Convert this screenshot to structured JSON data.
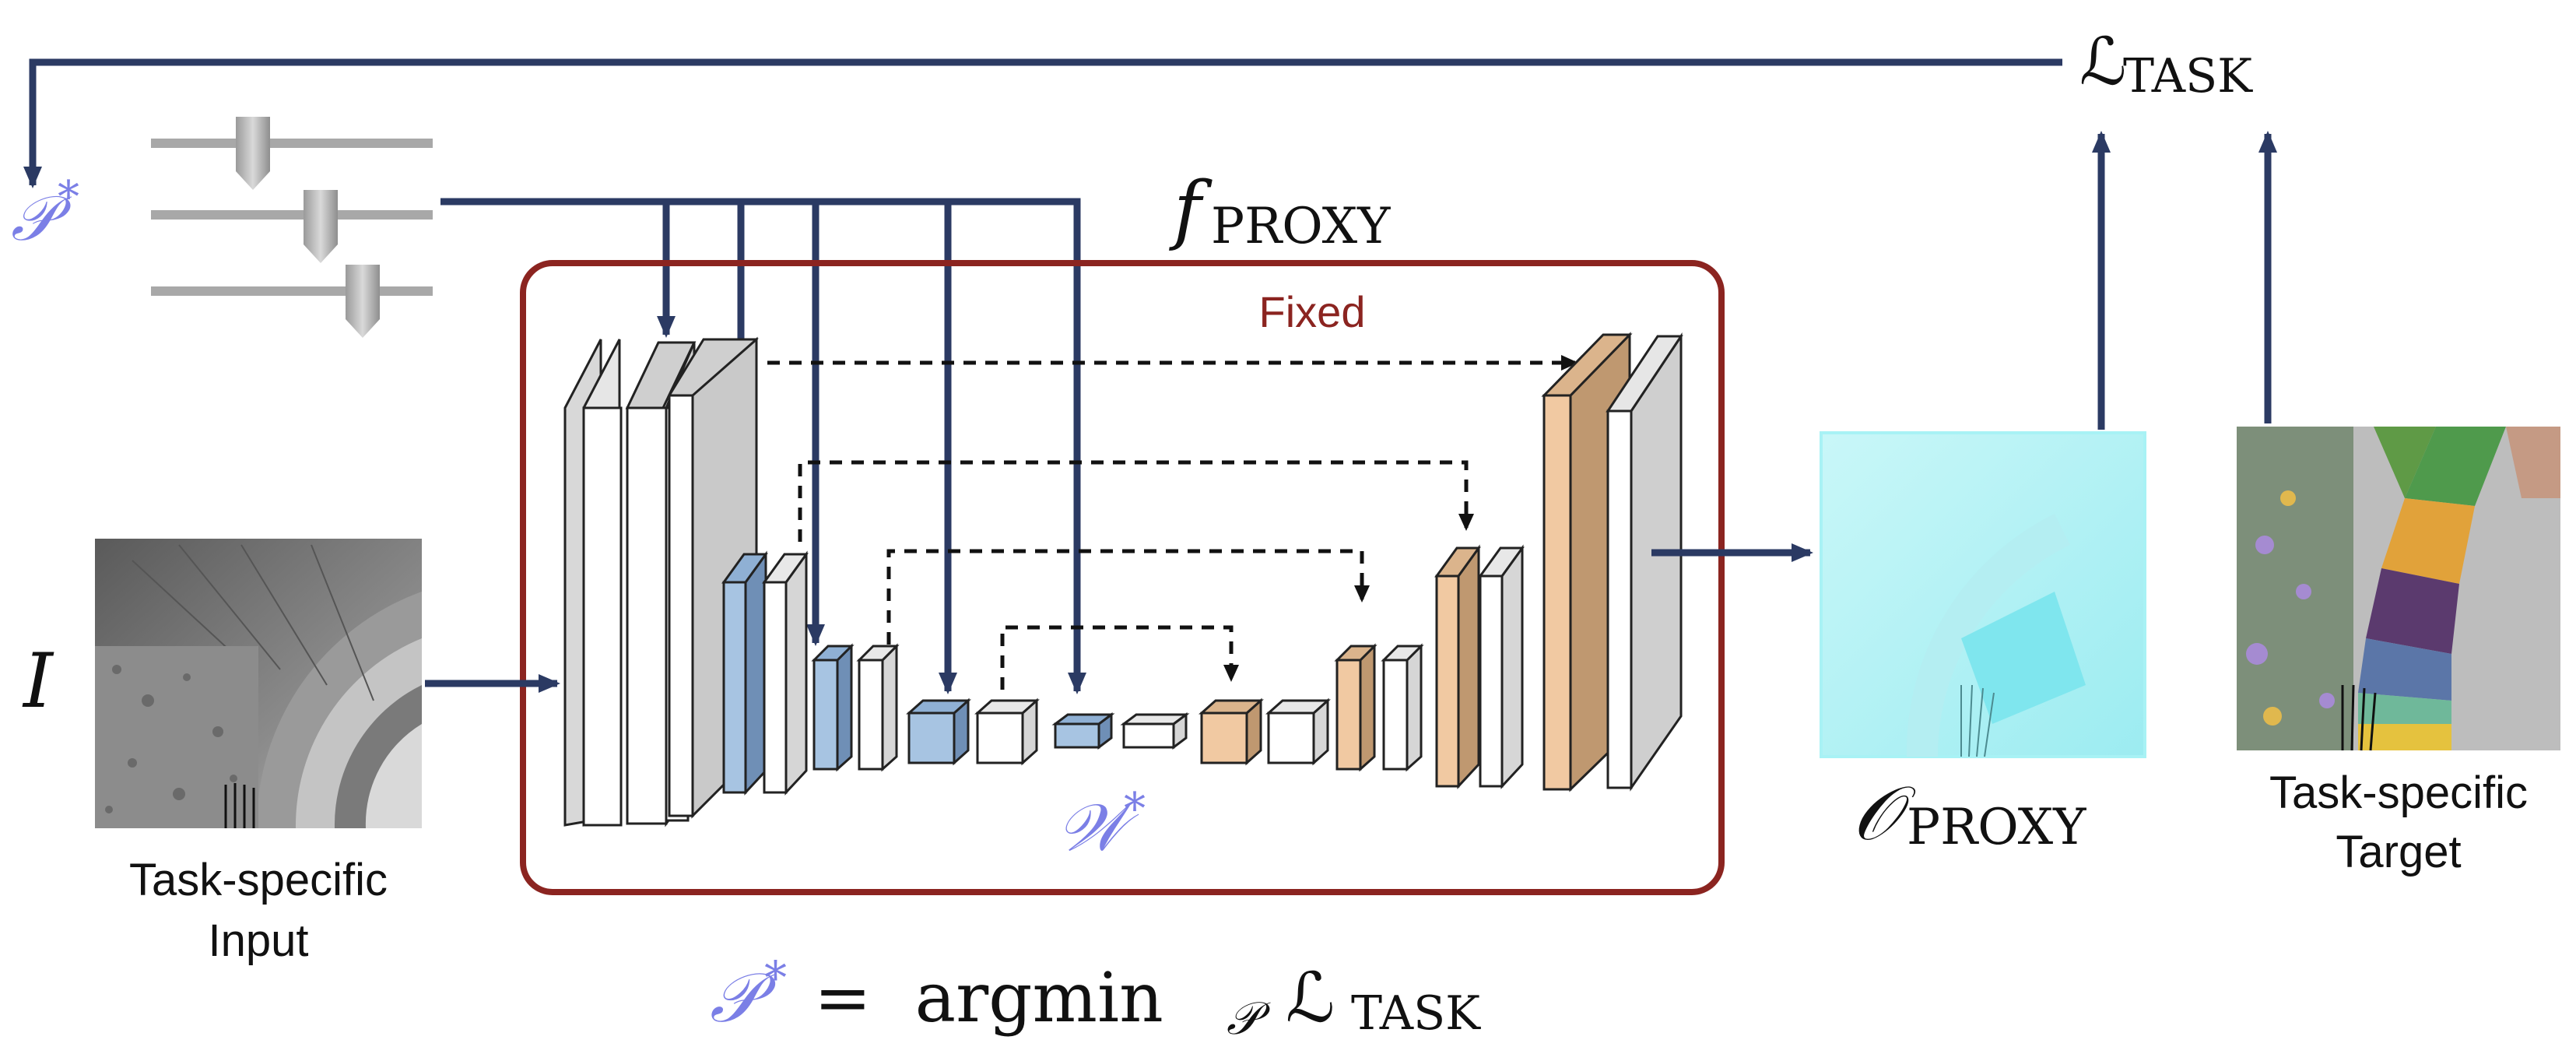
{
  "colors": {
    "arrow": "#2b3a63",
    "frame": "#8b2420",
    "accent_purple": "#7b7fe6",
    "light_block_face": "#ffffff",
    "light_block_side": "#d8d8d8",
    "blue_block_face": "#a7c4e2",
    "blue_block_side": "#6f8fb6",
    "orange_block_face": "#f1c9a2",
    "orange_block_side": "#bf9870",
    "slider_track": "#a8a8a8",
    "slider_knob": "#b5b5b5",
    "output_cyan": "#a8f2f5"
  },
  "labels": {
    "loss_task_script": "ℒ",
    "loss_task_sub": "TASK",
    "params_optimal_symbol": "𝒫",
    "params_optimal_star": "*",
    "f_proxy_symbol": "f",
    "f_proxy_sub": "PROXY",
    "fixed": "Fixed",
    "input_symbol": "I",
    "weights_symbol": "𝒲",
    "weights_star": "*",
    "output_symbol": "𝒪",
    "output_sub": "PROXY",
    "input_caption_line1": "Task-specific",
    "input_caption_line2": "Input",
    "target_caption_line1": "Task-specific",
    "target_caption_line2": "Target",
    "equation_lhs": "𝒫",
    "equation_star": "*",
    "equation_equals": " =  argmin",
    "equation_sub": "𝒫",
    "equation_loss": " ℒ",
    "equation_loss_sub": "TASK"
  }
}
